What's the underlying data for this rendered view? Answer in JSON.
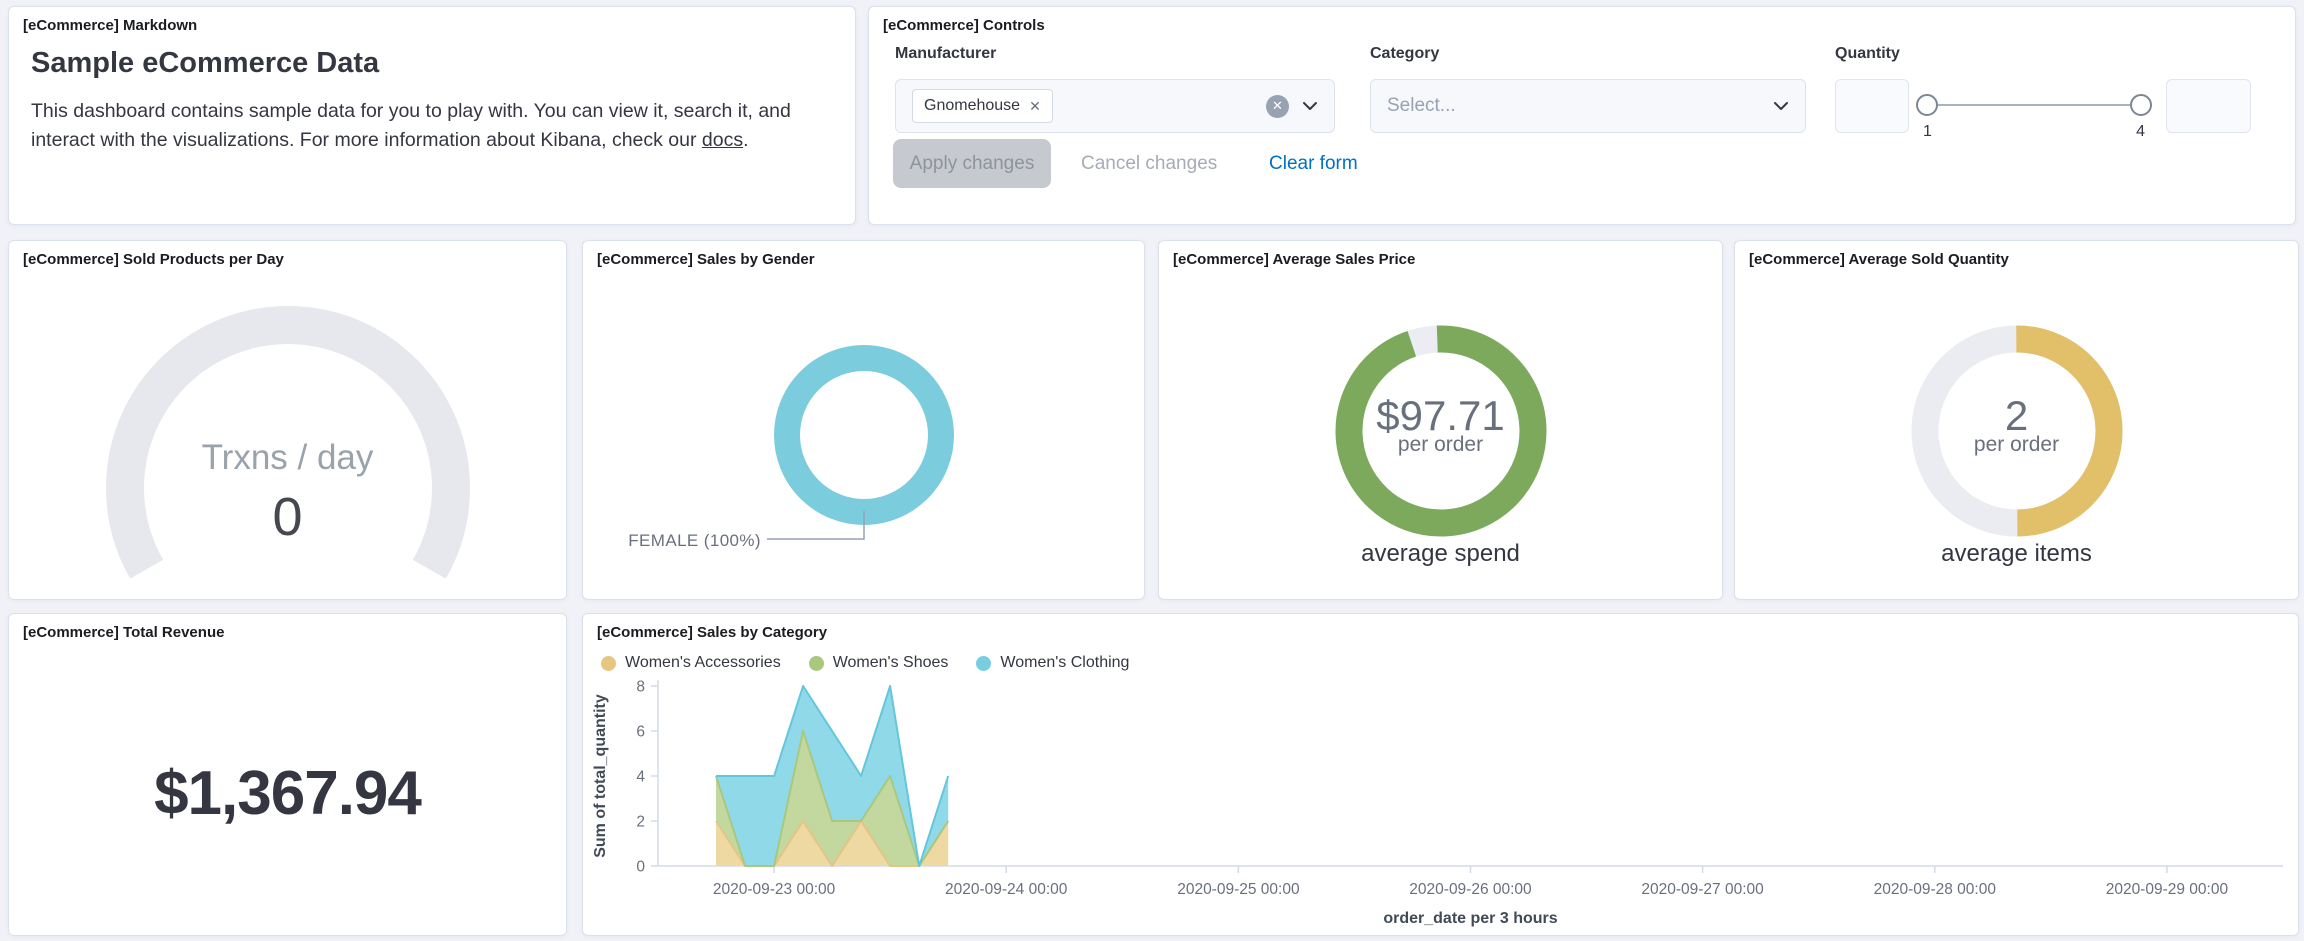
{
  "panels": {
    "markdown": {
      "title": "[eCommerce] Markdown",
      "heading": "Sample eCommerce Data",
      "body_prefix": "This dashboard contains sample data for you to play with. You can view it, search it, and interact with the visualizations. For more information about Kibana, check our ",
      "link_text": "docs",
      "body_suffix": "."
    },
    "controls": {
      "title": "[eCommerce] Controls",
      "manufacturer": {
        "label": "Manufacturer",
        "selected_tag": "Gnomehouse"
      },
      "category": {
        "label": "Category",
        "placeholder": "Select..."
      },
      "quantity": {
        "label": "Quantity",
        "range_min_label": "1",
        "range_max_label": "4",
        "min_value": "",
        "max_value": ""
      },
      "buttons": {
        "apply": "Apply changes",
        "cancel": "Cancel changes",
        "clear": "Clear form"
      }
    },
    "sold_products": {
      "title": "[eCommerce] Sold Products per Day",
      "gauge_label": "Trxns / day",
      "gauge_value": "0",
      "arc_color": "#e6e8ee",
      "sweep_percent": 66.6
    },
    "sales_by_gender": {
      "title": "[eCommerce] Sales by Gender",
      "slice_label": "FEMALE (100%)",
      "ring_color": "#7bccdc"
    },
    "avg_sales_price": {
      "title": "[eCommerce] Average Sales Price",
      "value": "$97.71",
      "unit": "per order",
      "caption": "average spend",
      "ring_color": "#7ca95c",
      "gap_color": "#ebedf2",
      "ring_percent": 95.5,
      "gap_center_deg": -100
    },
    "avg_sold_quantity": {
      "title": "[eCommerce] Average Sold Quantity",
      "value": "2",
      "unit": "per order",
      "caption": "average items",
      "ring_color": "#e2c06a",
      "track_color": "#eaecf1",
      "ring_percent": 50
    },
    "total_revenue": {
      "title": "[eCommerce] Total Revenue",
      "value": "$1,367.94"
    },
    "sales_by_category": {
      "title": "[eCommerce] Sales by Category"
    }
  },
  "chart_data": {
    "type": "area",
    "stacked": true,
    "title": "[eCommerce] Sales by Category",
    "x": [
      "2020-09-22 18:00",
      "2020-09-22 21:00",
      "2020-09-23 00:00",
      "2020-09-23 03:00",
      "2020-09-23 06:00",
      "2020-09-23 09:00",
      "2020-09-23 12:00",
      "2020-09-23 15:00",
      "2020-09-23 18:00"
    ],
    "series": [
      {
        "name": "Women's Accessories",
        "values": [
          2,
          0,
          0,
          2,
          0,
          2,
          0,
          0,
          2
        ],
        "dot": "#e7c67f",
        "fill": "#eed9a2",
        "line": "#e3c586"
      },
      {
        "name": "Women's Shoes",
        "values": [
          2,
          0,
          0,
          4,
          2,
          0,
          4,
          0,
          0
        ],
        "dot": "#a9c87e",
        "fill": "#c3d89f",
        "line": "#a9c87e"
      },
      {
        "name": "Women's Clothing",
        "values": [
          0,
          4,
          4,
          2,
          4,
          2,
          4,
          0,
          2
        ],
        "dot": "#79cde0",
        "fill": "#8fd9e9",
        "line": "#64c6dc"
      }
    ],
    "xlabel": "order_date per 3 hours",
    "ylabel": "Sum of total_quantity",
    "ylim": [
      0,
      8
    ],
    "yticks": [
      0,
      2,
      4,
      6,
      8
    ],
    "xticks": [
      "2020-09-23 00:00",
      "2020-09-24 00:00",
      "2020-09-25 00:00",
      "2020-09-26 00:00",
      "2020-09-27 00:00",
      "2020-09-28 00:00",
      "2020-09-29 00:00"
    ],
    "x_domain": [
      "2020-09-22 12:00",
      "2020-09-29 12:00"
    ],
    "legend_position": "top",
    "grid": false
  }
}
